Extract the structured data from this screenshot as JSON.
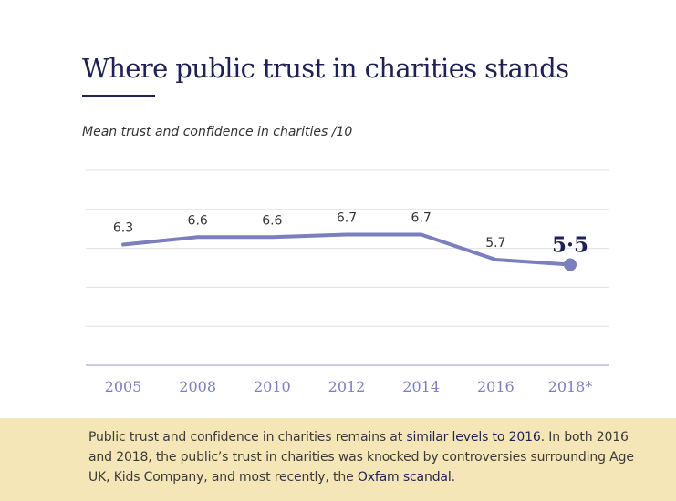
{
  "title": "Where public trust in charities stands",
  "subtitle": "Mean trust and confidence in charities /10",
  "colors": {
    "line": "#7b7fbd",
    "title": "#1f2155",
    "axis_label": "#7b7fbd",
    "footer_bg": "#f5e6b8"
  },
  "chart_data": {
    "type": "line",
    "title": "Where public trust in charities stands",
    "ylabel": "Mean trust and confidence in charities /10",
    "xlabel": "",
    "categories": [
      "2005",
      "2008",
      "2010",
      "2012",
      "2014",
      "2016",
      "2018*"
    ],
    "series": [
      {
        "name": "Mean trust and confidence",
        "values": [
          6.3,
          6.6,
          6.6,
          6.7,
          6.7,
          5.7,
          5.5
        ],
        "labels": [
          "6.3",
          "6.6",
          "6.6",
          "6.7",
          "6.7",
          "5.7",
          "5·5"
        ]
      }
    ],
    "ylim": [
      0,
      10
    ],
    "grid": true,
    "highlight_last": true
  },
  "footer": {
    "t1": "Public trust and confidence in charities remains at ",
    "h1": "similar levels to 2016",
    "t2": ". In both 2016 and 2018, the public’s trust in charities was knocked by controversies surrounding Age UK, Kids Company, and most recently, the ",
    "h2": "Oxfam scandal",
    "t3": "."
  }
}
